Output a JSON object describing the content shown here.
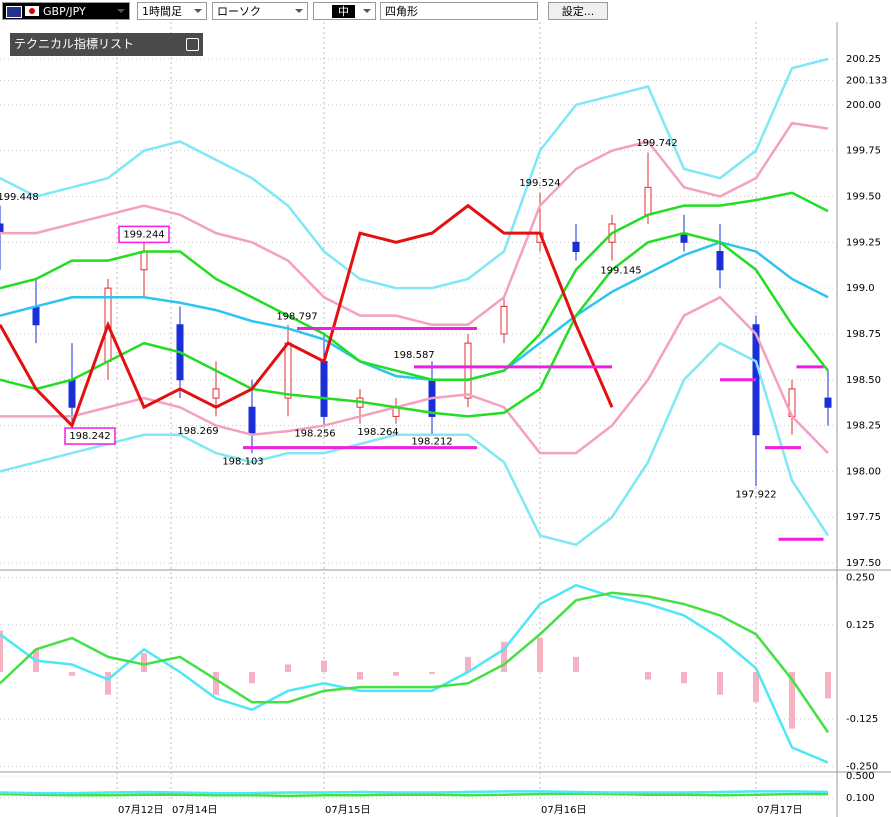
{
  "toolbar": {
    "symbol": "GBP/JPY",
    "timeframe": "1時間足",
    "chart_style": "ローソク",
    "size": "中",
    "drawing_tool": "四角形",
    "settings_button": "設定..."
  },
  "indicator_panel": {
    "title": "テクニカル指標リスト"
  },
  "chart_data": [
    {
      "type": "candlestick",
      "xlim": [
        0,
        93
      ],
      "ylim": [
        197.462,
        200.452
      ],
      "xticks": [
        {
          "value": 13,
          "label": "07月12日"
        },
        {
          "value": 19,
          "label": "07月14日"
        },
        {
          "value": 36,
          "label": "07月15日"
        },
        {
          "value": 60,
          "label": "07月16日"
        },
        {
          "value": 84,
          "label": "07月17日"
        }
      ],
      "yticks": [
        200.25,
        200.133,
        {
          "value": 200,
          "label": "200.00"
        },
        199.75,
        {
          "value": 199.5,
          "label": "199.50"
        },
        199.25,
        {
          "value": 199,
          "label": "199.0"
        },
        198.75,
        {
          "value": 198.5,
          "label": "198.50"
        },
        198.25,
        {
          "value": 198,
          "label": "198.00"
        },
        197.75,
        {
          "value": 197.5,
          "label": "197.50"
        }
      ],
      "grid": true,
      "up_color": "#e03030",
      "down_color": "#1a2fd8",
      "x": [
        0,
        4,
        8,
        12,
        16,
        20,
        24,
        28,
        32,
        36,
        40,
        44,
        48,
        52,
        56,
        60,
        64,
        68,
        72,
        76,
        80,
        84,
        88,
        92
      ],
      "open": [
        199.35,
        198.9,
        198.5,
        198.6,
        199.1,
        198.8,
        198.4,
        198.35,
        198.4,
        198.6,
        198.35,
        198.3,
        198.5,
        198.4,
        198.75,
        199.25,
        199.25,
        199.25,
        199.4,
        199.3,
        199.2,
        198.8,
        198.3,
        198.4
      ],
      "high": [
        199.45,
        199.05,
        198.7,
        199.05,
        199.25,
        198.9,
        198.6,
        198.5,
        198.8,
        198.75,
        198.45,
        198.4,
        198.6,
        198.75,
        198.95,
        199.52,
        199.35,
        199.4,
        199.74,
        199.4,
        199.35,
        198.85,
        198.5,
        198.55
      ],
      "low": [
        199.1,
        198.7,
        198.2,
        198.5,
        198.95,
        198.4,
        198.3,
        198.1,
        198.3,
        198.25,
        198.26,
        198.26,
        198.2,
        198.35,
        198.7,
        199.2,
        199.15,
        199.15,
        199.35,
        199.2,
        199.0,
        197.92,
        198.2,
        198.25
      ],
      "close": [
        199.3,
        198.8,
        198.35,
        199.0,
        199.2,
        198.5,
        198.45,
        198.2,
        198.7,
        198.3,
        198.4,
        198.35,
        198.3,
        198.7,
        198.9,
        199.3,
        199.2,
        199.35,
        199.55,
        199.25,
        199.1,
        198.2,
        198.45,
        198.35
      ],
      "series": [
        {
          "color": "#7fe8f5",
          "values": [
            199.6,
            199.5,
            199.55,
            199.6,
            199.75,
            199.8,
            199.7,
            199.6,
            199.45,
            199.2,
            199.05,
            199.0,
            199.0,
            199.05,
            199.2,
            199.75,
            200.0,
            200.05,
            200.1,
            199.65,
            199.6,
            199.75,
            200.2,
            200.25
          ]
        },
        {
          "color": "#7fe8f5",
          "values": [
            198.0,
            198.05,
            198.1,
            198.15,
            198.2,
            198.2,
            198.1,
            198.05,
            198.1,
            198.1,
            198.15,
            198.2,
            198.2,
            198.2,
            198.05,
            197.65,
            197.6,
            197.75,
            198.05,
            198.5,
            198.7,
            198.6,
            197.95,
            197.65
          ]
        },
        {
          "color": "#f4a0bf",
          "values": [
            199.3,
            199.3,
            199.35,
            199.4,
            199.45,
            199.4,
            199.3,
            199.25,
            199.15,
            198.95,
            198.85,
            198.85,
            198.8,
            198.8,
            198.95,
            199.45,
            199.65,
            199.75,
            199.8,
            199.55,
            199.5,
            199.6,
            199.9,
            199.87
          ]
        },
        {
          "color": "#f4a0bf",
          "values": [
            198.3,
            198.3,
            198.3,
            198.35,
            198.4,
            198.35,
            198.25,
            198.2,
            198.22,
            198.25,
            198.3,
            198.35,
            198.4,
            198.42,
            198.35,
            198.1,
            198.1,
            198.25,
            198.5,
            198.85,
            198.95,
            198.75,
            198.3,
            198.1
          ]
        },
        {
          "color": "#2ec4f0",
          "values": [
            198.85,
            198.9,
            198.95,
            198.95,
            198.95,
            198.92,
            198.88,
            198.82,
            198.78,
            198.72,
            198.6,
            198.52,
            198.5,
            198.5,
            198.55,
            198.7,
            198.85,
            198.98,
            199.08,
            199.18,
            199.25,
            199.2,
            199.05,
            198.95
          ]
        },
        {
          "color": "#22dd22",
          "values": [
            199.0,
            199.05,
            199.15,
            199.15,
            199.2,
            199.2,
            199.05,
            198.95,
            198.85,
            198.75,
            198.6,
            198.55,
            198.5,
            198.5,
            198.55,
            198.75,
            199.1,
            199.3,
            199.4,
            199.45,
            199.45,
            199.48,
            199.52,
            199.42
          ]
        },
        {
          "color": "#22dd22",
          "values": [
            198.5,
            198.45,
            198.5,
            198.6,
            198.7,
            198.65,
            198.55,
            198.45,
            198.42,
            198.4,
            198.38,
            198.35,
            198.32,
            198.3,
            198.32,
            198.45,
            198.85,
            199.1,
            199.25,
            199.3,
            199.25,
            199.1,
            198.8,
            198.55
          ]
        },
        {
          "color": "#e41010",
          "values": [
            198.8,
            198.45,
            198.25,
            198.8,
            198.35,
            198.45,
            198.35,
            198.45,
            198.7,
            198.6,
            199.3,
            199.25,
            199.3,
            199.45,
            199.3,
            199.3,
            198.8,
            198.35,
            null,
            null,
            null,
            null,
            null,
            null
          ]
        }
      ],
      "levels_color": "#f01ee0",
      "levels": [
        {
          "value": 198.78,
          "x": [
            33,
            53
          ]
        },
        {
          "value": 198.57,
          "x": [
            46,
            68
          ]
        },
        {
          "value": 198.13,
          "x": [
            27,
            53
          ]
        },
        {
          "value": 198.5,
          "x": [
            80,
            84
          ]
        },
        {
          "value": 198.57,
          "x": [
            88.5,
            91.5
          ]
        },
        {
          "value": 198.13,
          "x": [
            85,
            89
          ]
        },
        {
          "value": 197.63,
          "x": [
            86.5,
            91.5
          ]
        }
      ],
      "annotations": [
        {
          "label": "199.448",
          "value": 199.448,
          "x": 2,
          "anchor": "above"
        },
        {
          "label": "199.244",
          "value": 199.244,
          "x": 16,
          "anchor": "above",
          "boxed": true
        },
        {
          "label": "198.242",
          "value": 198.242,
          "x": 10,
          "anchor": "below",
          "boxed": true
        },
        {
          "label": "198.269",
          "value": 198.269,
          "x": 22,
          "anchor": "below"
        },
        {
          "label": "198.103",
          "value": 198.103,
          "x": 27,
          "anchor": "below"
        },
        {
          "label": "198.797",
          "value": 198.797,
          "x": 33,
          "anchor": "above"
        },
        {
          "label": "198.256",
          "value": 198.256,
          "x": 35,
          "anchor": "below"
        },
        {
          "label": "198.264",
          "value": 198.264,
          "x": 42,
          "anchor": "below"
        },
        {
          "label": "198.587",
          "value": 198.587,
          "x": 46,
          "anchor": "above"
        },
        {
          "label": "198.212",
          "value": 198.212,
          "x": 48,
          "anchor": "below"
        },
        {
          "label": "199.524",
          "value": 199.524,
          "x": 60,
          "anchor": "above"
        },
        {
          "label": "199.742",
          "value": 199.742,
          "x": 73,
          "anchor": "above"
        },
        {
          "label": "199.145",
          "value": 199.145,
          "x": 69,
          "anchor": "below"
        },
        {
          "label": "197.922",
          "value": 197.922,
          "x": 84,
          "anchor": "below"
        }
      ]
    },
    {
      "type": "bar",
      "xlim": [
        0,
        93
      ],
      "ylim": [
        -0.265,
        0.265
      ],
      "yticks": [
        {
          "value": 0.25,
          "label": "0.250"
        },
        0.125,
        -0.125,
        {
          "value": -0.25,
          "label": "-0.250"
        }
      ],
      "x": [
        0,
        4,
        8,
        12,
        16,
        20,
        24,
        28,
        32,
        36,
        40,
        44,
        48,
        52,
        56,
        60,
        64,
        68,
        72,
        76,
        80,
        84,
        88,
        92
      ],
      "color": "#f6b2c2",
      "values": [
        0.11,
        0.06,
        -0.01,
        -0.06,
        0.05,
        0.0,
        -0.06,
        -0.03,
        0.02,
        0.03,
        -0.02,
        -0.01,
        -0.005,
        0.04,
        0.08,
        0.09,
        0.04,
        0.0,
        -0.02,
        -0.03,
        -0.06,
        -0.08,
        -0.15,
        -0.07
      ],
      "series": [
        {
          "color": "#4fe6f5",
          "values": [
            0.1,
            0.03,
            0.02,
            -0.02,
            0.06,
            0.0,
            -0.07,
            -0.1,
            -0.05,
            -0.03,
            -0.05,
            -0.05,
            -0.05,
            0.0,
            0.06,
            0.18,
            0.23,
            0.2,
            0.18,
            0.15,
            0.09,
            0.01,
            -0.2,
            -0.24
          ]
        },
        {
          "color": "#44e044",
          "values": [
            -0.03,
            0.06,
            0.09,
            0.04,
            0.02,
            0.04,
            -0.02,
            -0.08,
            -0.08,
            -0.05,
            -0.04,
            -0.04,
            -0.04,
            -0.03,
            0.02,
            0.1,
            0.19,
            0.21,
            0.2,
            0.18,
            0.15,
            0.1,
            -0.02,
            -0.16
          ]
        }
      ]
    },
    {
      "type": "line",
      "xlim": [
        0,
        93
      ],
      "ylim": [
        -0.245,
        0.573
      ],
      "yticks": [
        {
          "value": 0.5,
          "label": "0.500"
        },
        {
          "value": 0.1,
          "label": "0.100"
        }
      ],
      "x": [
        0,
        4,
        8,
        12,
        16,
        20,
        24,
        28,
        32,
        36,
        40,
        44,
        48,
        52,
        56,
        60,
        64,
        68,
        72,
        76,
        80,
        84,
        88,
        92
      ],
      "series": [
        {
          "color": "#44e044",
          "values": [
            0.17,
            0.16,
            0.15,
            0.15,
            0.16,
            0.16,
            0.15,
            0.15,
            0.14,
            0.15,
            0.15,
            0.16,
            0.16,
            0.15,
            0.16,
            0.17,
            0.18,
            0.17,
            0.16,
            0.16,
            0.15,
            0.16,
            0.17,
            0.17
          ]
        },
        {
          "color": "#4fe6f5",
          "values": [
            0.2,
            0.19,
            0.19,
            0.2,
            0.21,
            0.2,
            0.19,
            0.19,
            0.2,
            0.2,
            0.21,
            0.2,
            0.2,
            0.21,
            0.22,
            0.22,
            0.21,
            0.2,
            0.2,
            0.2,
            0.21,
            0.22,
            0.22,
            0.21
          ]
        }
      ]
    }
  ]
}
